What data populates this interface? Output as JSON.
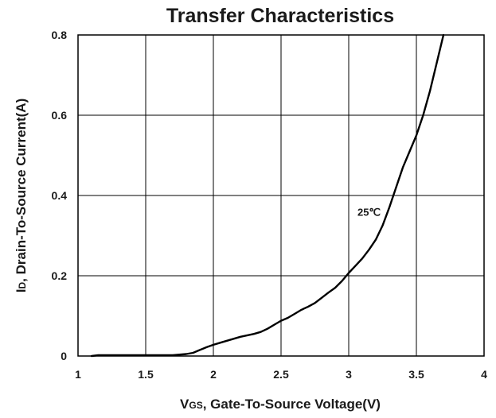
{
  "chart_data": {
    "type": "line",
    "title": "Transfer Characteristics",
    "xlabel": {
      "prefix": "V",
      "subscript": "GS",
      "suffix": ", Gate-To-Source Voltage(V)"
    },
    "ylabel": {
      "prefix": "I",
      "subscript": "D",
      "suffix": ", Drain-To-Source Current(A)"
    },
    "xlim": [
      1,
      4
    ],
    "ylim": [
      0,
      0.8
    ],
    "x_ticks": [
      1,
      1.5,
      2,
      2.5,
      3,
      3.5,
      4
    ],
    "x_tick_labels": [
      "1",
      "1.5",
      "2",
      "2.5",
      "3",
      "3.5",
      "4"
    ],
    "y_ticks": [
      0,
      0.2,
      0.4,
      0.6,
      0.8
    ],
    "y_tick_labels": [
      "0",
      "0.2",
      "0.4",
      "0.6",
      "0.8"
    ],
    "grid": true,
    "annotations": [
      {
        "text": "25℃",
        "x": 3.15,
        "y": 0.35
      }
    ],
    "series": [
      {
        "color": "#000000",
        "x": [
          1.1,
          1.15,
          1.3,
          1.5,
          1.7,
          1.8,
          1.85,
          1.9,
          1.95,
          2.0,
          2.05,
          2.1,
          2.15,
          2.2,
          2.3,
          2.35,
          2.4,
          2.45,
          2.5,
          2.55,
          2.6,
          2.65,
          2.7,
          2.75,
          2.8,
          2.85,
          2.9,
          2.95,
          3.0,
          3.05,
          3.1,
          3.15,
          3.2,
          3.25,
          3.3,
          3.35,
          3.4,
          3.45,
          3.5,
          3.55,
          3.6,
          3.65,
          3.7
        ],
        "y": [
          0.0,
          0.002,
          0.002,
          0.002,
          0.002,
          0.005,
          0.008,
          0.015,
          0.022,
          0.028,
          0.033,
          0.038,
          0.043,
          0.048,
          0.055,
          0.06,
          0.068,
          0.078,
          0.088,
          0.095,
          0.105,
          0.115,
          0.123,
          0.132,
          0.145,
          0.158,
          0.17,
          0.187,
          0.207,
          0.225,
          0.243,
          0.265,
          0.29,
          0.325,
          0.37,
          0.42,
          0.47,
          0.51,
          0.55,
          0.6,
          0.66,
          0.73,
          0.8
        ]
      }
    ]
  }
}
